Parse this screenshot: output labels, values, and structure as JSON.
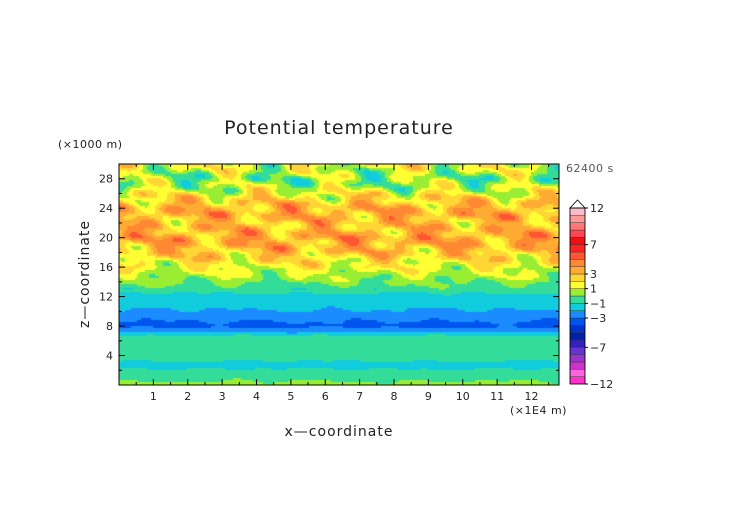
{
  "chart_data": {
    "type": "heatmap",
    "title": "Potential temperature",
    "xlabel": "x—coordinate",
    "ylabel": "z—coordinate",
    "x_unit": "(×1E4 m)",
    "y_unit": "(×1000 m)",
    "time_stamp": "62400 s",
    "xlim": [
      0,
      12.8
    ],
    "ylim": [
      0,
      30
    ],
    "x_ticks": [
      "1",
      "2",
      "3",
      "4",
      "5",
      "6",
      "7",
      "8",
      "9",
      "10",
      "11",
      "12"
    ],
    "y_ticks": [
      "4",
      "8",
      "12",
      "16",
      "20",
      "24",
      "28"
    ],
    "colorbar": {
      "tick_labels": [
        "12",
        "7",
        "3",
        "1",
        "−1",
        "−3",
        "−7",
        "−12"
      ],
      "tick_values": [
        12,
        7,
        3,
        1,
        -1,
        -3,
        -7,
        -12
      ],
      "levels": [
        -12,
        -11,
        -10,
        -9,
        -8,
        -7,
        -6,
        -5,
        -4,
        -3,
        -2,
        -1,
        0,
        1,
        2,
        3,
        4,
        5,
        6,
        7,
        8,
        9,
        10,
        11,
        12
      ],
      "colors": [
        "#ff33cc",
        "#ff66dd",
        "#cc33cc",
        "#9933cc",
        "#6633cc",
        "#3322bb",
        "#0022aa",
        "#0033cc",
        "#0055ee",
        "#1a8cff",
        "#11ccdd",
        "#33dd99",
        "#99ee33",
        "#ffff33",
        "#ffd633",
        "#ffaa33",
        "#ff8833",
        "#ff5533",
        "#ff2222",
        "#ee1111",
        "#ff4455",
        "#ff7777",
        "#ff9999",
        "#ffbbcc"
      ]
    },
    "profile": {
      "z": [
        0,
        1,
        2,
        2.7,
        3.5,
        4.5,
        5.5,
        6.5,
        7.2,
        8,
        9,
        10,
        11,
        12,
        13,
        14,
        15,
        16,
        17,
        18,
        19,
        20,
        21,
        22,
        23,
        24,
        25,
        26,
        27,
        28,
        29,
        30
      ],
      "theta": [
        0.3,
        -0.3,
        -0.8,
        -1.6,
        -0.7,
        -0.6,
        -0.3,
        -0.5,
        -2.1,
        -3.3,
        -2.8,
        -2.1,
        -1.6,
        -1.3,
        -0.6,
        0.2,
        0.8,
        1.5,
        2.1,
        2.9,
        3.3,
        3.6,
        3.1,
        2.9,
        3.4,
        3.3,
        2.5,
        1.6,
        0.6,
        0.3,
        0.9,
        1.4
      ]
    }
  }
}
